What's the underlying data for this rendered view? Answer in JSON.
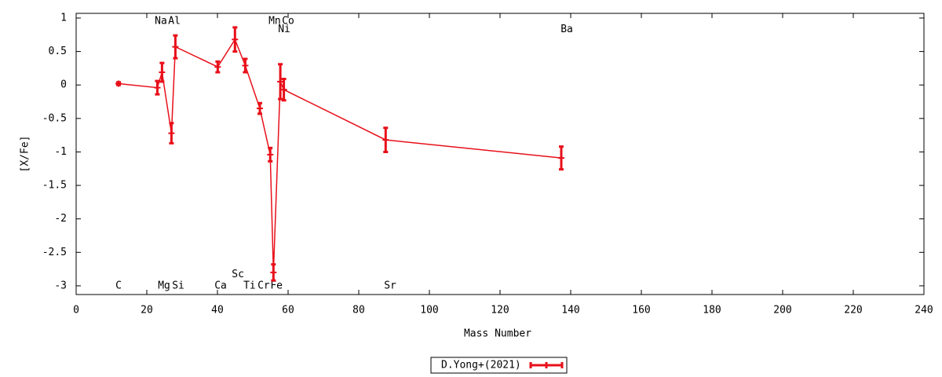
{
  "chart_data": {
    "type": "errorline",
    "xlabel": "Mass Number",
    "ylabel": "[X/Fe]",
    "xlim": [
      0,
      240
    ],
    "xticks": [
      0,
      20,
      40,
      60,
      80,
      100,
      120,
      140,
      160,
      180,
      200,
      220,
      240
    ],
    "ylim": [
      -3.13,
      1.07
    ],
    "yticks": [
      1,
      0.5,
      0,
      -0.5,
      -1,
      -1.5,
      -2,
      -2.5,
      -3
    ],
    "legend": "bottom",
    "series": [
      {
        "name": "D.Yong+(2021)",
        "color": "#e8101a",
        "x": [
          12.01,
          22.99,
          24.31,
          26.98,
          28.09,
          40.08,
          44.96,
          47.87,
          52.0,
          54.94,
          55.85,
          57.8,
          58.8,
          87.62,
          137.33
        ],
        "values": [
          0.02,
          -0.04,
          0.19,
          -0.72,
          0.57,
          0.27,
          0.68,
          0.29,
          -0.35,
          -1.04,
          -2.8,
          0.05,
          -0.07,
          -0.82,
          -1.09
        ],
        "errors": [
          0.02,
          0.1,
          0.14,
          0.15,
          0.17,
          0.08,
          0.18,
          0.1,
          0.08,
          0.1,
          0.12,
          0.26,
          0.16,
          0.18,
          0.17
        ]
      }
    ],
    "annotations": [
      {
        "text": "C",
        "x": 12,
        "y": -3.0
      },
      {
        "text": "Na",
        "x": 24,
        "y": 0.95
      },
      {
        "text": "Al",
        "x": 27.8,
        "y": 0.95
      },
      {
        "text": "Mg",
        "x": 24.9,
        "y": -3.0
      },
      {
        "text": "Si",
        "x": 28.9,
        "y": -3.0
      },
      {
        "text": "Ca",
        "x": 40.9,
        "y": -3.0
      },
      {
        "text": "Sc",
        "x": 45.8,
        "y": -2.83
      },
      {
        "text": "Ti",
        "x": 49.1,
        "y": -3.0
      },
      {
        "text": "Cr",
        "x": 53.1,
        "y": -3.0
      },
      {
        "text": "Fe",
        "x": 56.7,
        "y": -3.0
      },
      {
        "text": "Mn",
        "x": 56.2,
        "y": 0.95
      },
      {
        "text": "Co",
        "x": 60,
        "y": 0.95
      },
      {
        "text": "Ni",
        "x": 58.9,
        "y": 0.83
      },
      {
        "text": "Sr",
        "x": 88.9,
        "y": -3.0
      },
      {
        "text": "Ba",
        "x": 138.9,
        "y": 0.83
      }
    ]
  }
}
